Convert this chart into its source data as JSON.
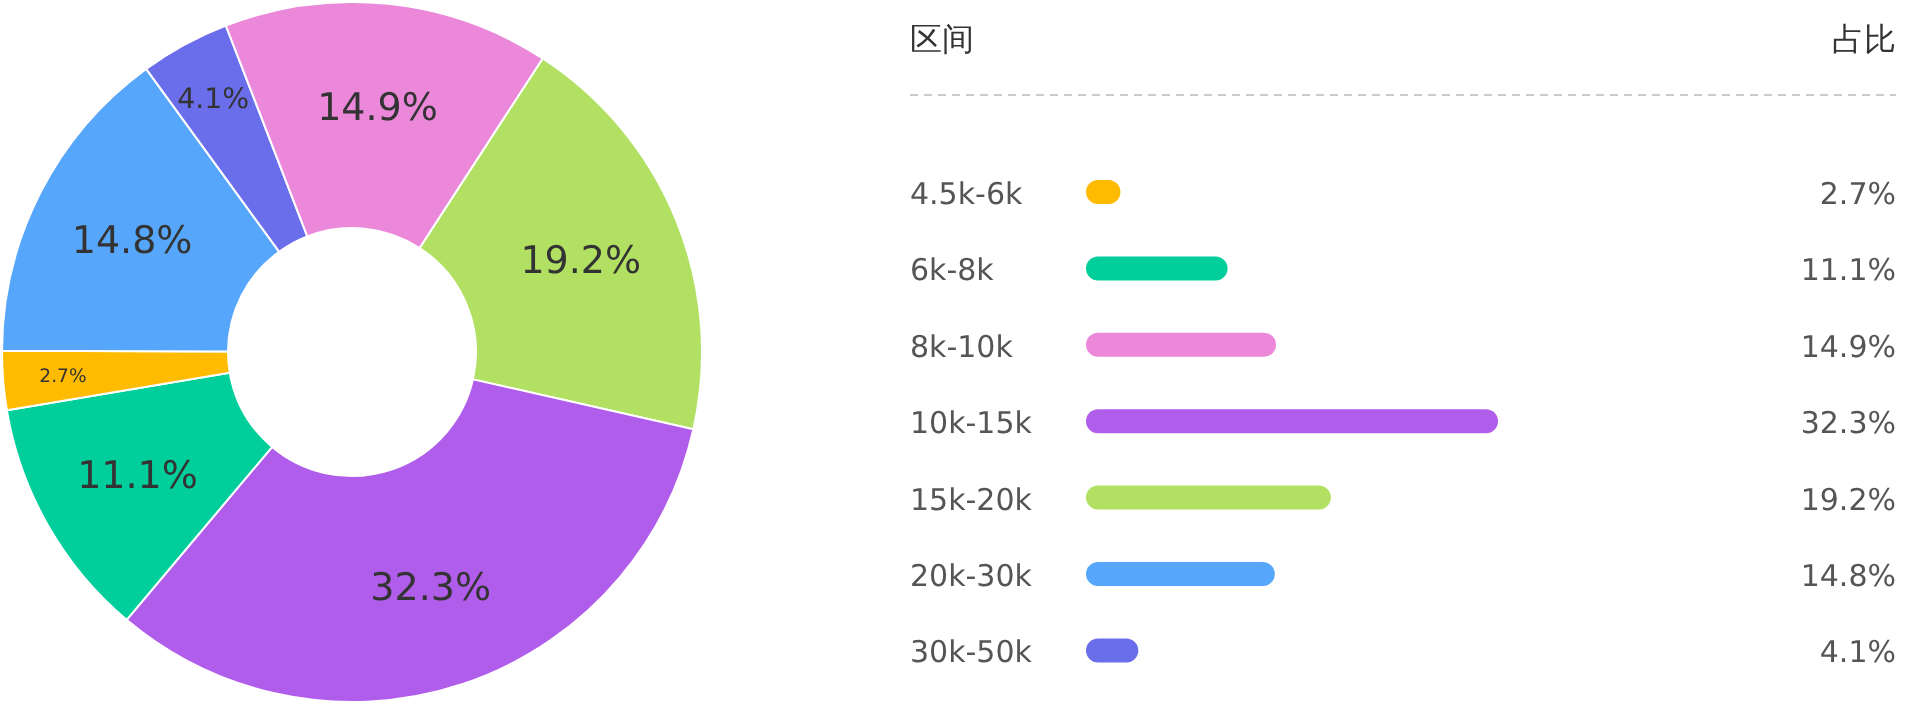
{
  "chart_data": [
    {
      "type": "donut",
      "categories": [
        null,
        null,
        null,
        null,
        null,
        null,
        null
      ],
      "values": [
        19.2,
        32.3,
        11.1,
        2.7,
        14.8,
        4.1,
        14.9
      ],
      "colors": [
        "#b1e063",
        "#b15deb",
        "#00cf9c",
        "#ffbb00",
        "#56a6fb",
        "#6a6eea",
        "#eb88da"
      ],
      "value_labels": [
        "19.2%",
        "32.3%",
        "11.1%",
        "2.7%",
        "14.8%",
        "4.1%",
        "14.9%"
      ]
    },
    {
      "type": "bar",
      "orientation": "horizontal",
      "ylabel": "区间",
      "annotations": [
        "占比"
      ],
      "categories": [
        "4.5k-6k",
        "6k-8k",
        "8k-10k",
        "10k-15k",
        "15k-20k",
        "20k-30k",
        "30k-50k"
      ],
      "values": [
        2.7,
        11.1,
        14.9,
        32.3,
        19.2,
        14.8,
        4.1
      ],
      "colors": [
        "#ffbb00",
        "#00cf9c",
        "#eb88da",
        "#b15deb",
        "#b1e063",
        "#56a6fb",
        "#6a6eea"
      ],
      "value_labels": [
        "2.7%",
        "11.1%",
        "14.9%",
        "32.3%",
        "19.2%",
        "14.8%",
        "4.1%"
      ]
    }
  ]
}
